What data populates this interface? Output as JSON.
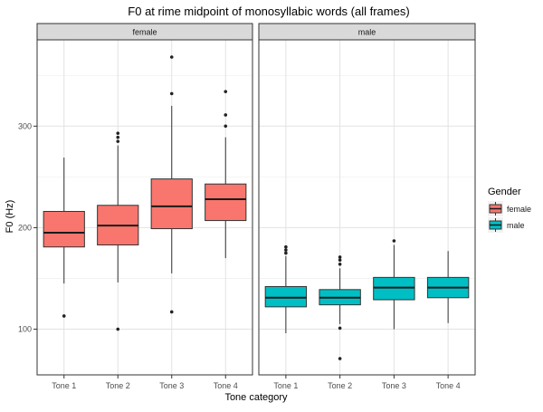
{
  "chart_data": {
    "type": "boxplot",
    "title": "F0 at rime midpoint of monosyllabic words (all frames)",
    "xlabel": "Tone category",
    "ylabel": "F0 (Hz)",
    "ylim": [
      55,
      385
    ],
    "yticks": [
      100,
      200,
      300
    ],
    "categories": [
      "Tone 1",
      "Tone 2",
      "Tone 3",
      "Tone 4"
    ],
    "grid": true,
    "legend": {
      "title": "Gender",
      "position": "right",
      "entries": [
        {
          "label": "female",
          "color": "#F8766D"
        },
        {
          "label": "male",
          "color": "#00BFC4"
        }
      ]
    },
    "panels": [
      {
        "strip": "female",
        "color": "#F8766D",
        "boxes": [
          {
            "category": "Tone 1",
            "lower_whisker": 145,
            "q1": 181,
            "median": 195,
            "q3": 216,
            "upper_whisker": 269,
            "outliers": [
              113
            ]
          },
          {
            "category": "Tone 2",
            "lower_whisker": 146,
            "q1": 183,
            "median": 202,
            "q3": 222,
            "upper_whisker": 281,
            "outliers": [
              100,
              285,
              289,
              293
            ]
          },
          {
            "category": "Tone 3",
            "lower_whisker": 155,
            "q1": 199,
            "median": 221,
            "q3": 248,
            "upper_whisker": 320,
            "outliers": [
              117,
              332,
              368
            ]
          },
          {
            "category": "Tone 4",
            "lower_whisker": 170,
            "q1": 207,
            "median": 228,
            "q3": 243,
            "upper_whisker": 289,
            "outliers": [
              300,
              311,
              334
            ]
          }
        ]
      },
      {
        "strip": "male",
        "color": "#00BFC4",
        "boxes": [
          {
            "category": "Tone 1",
            "lower_whisker": 96,
            "q1": 122,
            "median": 131,
            "q3": 142,
            "upper_whisker": 172,
            "outliers": [
              175,
              178,
              181
            ]
          },
          {
            "category": "Tone 2",
            "lower_whisker": 105,
            "q1": 124,
            "median": 131,
            "q3": 139,
            "upper_whisker": 160,
            "outliers": [
              71,
              101,
              164,
              168,
              171
            ]
          },
          {
            "category": "Tone 3",
            "lower_whisker": 100,
            "q1": 129,
            "median": 141,
            "q3": 151,
            "upper_whisker": 183,
            "outliers": [
              187
            ]
          },
          {
            "category": "Tone 4",
            "lower_whisker": 106,
            "q1": 131,
            "median": 141,
            "q3": 151,
            "upper_whisker": 177,
            "outliers": []
          }
        ]
      }
    ]
  }
}
